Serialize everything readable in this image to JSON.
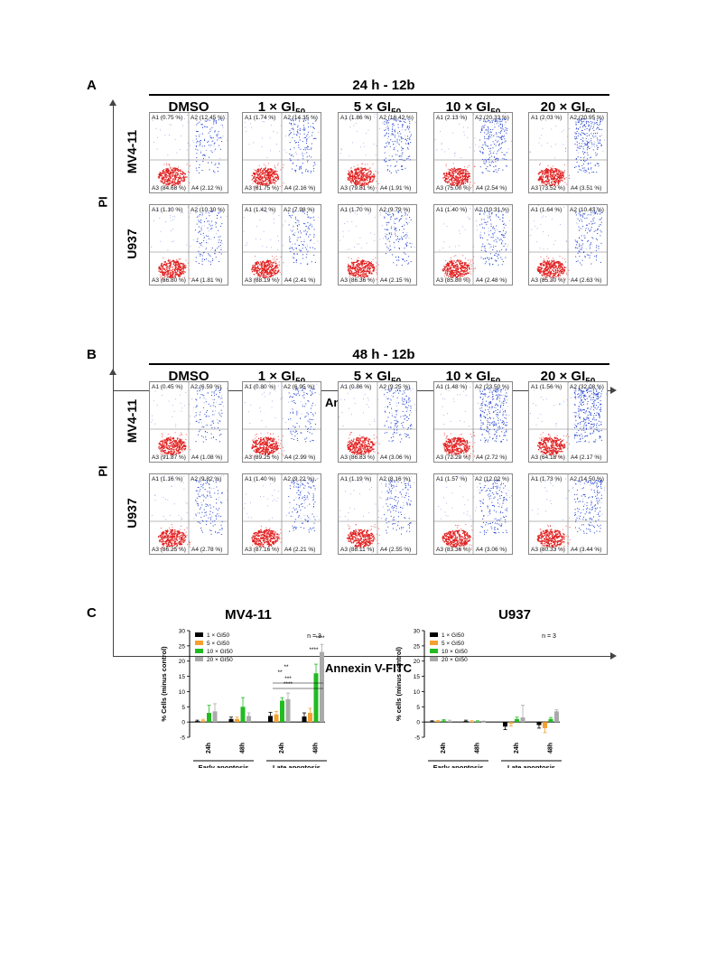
{
  "panels": {
    "A": {
      "letter": "A",
      "title": "24 h - 12b",
      "columns": [
        "DMSO",
        "1 × GI",
        "5 × GI",
        "10 × GI",
        "20 × GI"
      ],
      "col_subscript": "50",
      "rows": [
        "MV4-11",
        "U937"
      ],
      "y_label": "PI",
      "x_label": "Annexin V-FITC",
      "quadrants": [
        [
          [
            "A1 (0.75 %)",
            "A2 (12.45 %)",
            "A3 (84.68 %)",
            "A4 (2.12 %)"
          ],
          [
            "A1 (1.74 %)",
            "A2 (14.35 %)",
            "A3 (81.75 %)",
            "A4 (2.16 %)"
          ],
          [
            "A1 (1.86 %)",
            "A2 (16.42 %)",
            "A3 (79.81 %)",
            "A4 (1.91 %)"
          ],
          [
            "A1 (2.13 %)",
            "A2 (20.33 %)",
            "A3 (75.00 %)",
            "A4 (2.54 %)"
          ],
          [
            "A1 (2.03 %)",
            "A2 (20.95 %)",
            "A3 (73.52 %)",
            "A4 (3.51 %)"
          ]
        ],
        [
          [
            "A1 (1.10 %)",
            "A2 (10.30 %)",
            "A3 (86.80 %)",
            "A4 (1.81 %)"
          ],
          [
            "A1 (1.42 %)",
            "A2 (7.98 %)",
            "A3 (88.19 %)",
            "A4 (2.41 %)"
          ],
          [
            "A1 (1.70 %)",
            "A2 (9.79 %)",
            "A3 (86.36 %)",
            "A4 (2.15 %)"
          ],
          [
            "A1 (1.40 %)",
            "A2 (10.31 %)",
            "A3 (85.80 %)",
            "A4 (2.48 %)"
          ],
          [
            "A1 (1.64 %)",
            "A2 (10.43 %)",
            "A3 (85.30 %)",
            "A4 (2.63 %)"
          ]
        ]
      ],
      "density": [
        [
          0.2,
          0.3,
          0.4,
          0.55,
          0.6
        ],
        [
          0.2,
          0.2,
          0.25,
          0.3,
          0.3
        ]
      ]
    },
    "B": {
      "letter": "B",
      "title": "48 h - 12b",
      "columns": [
        "DMSO",
        "1 × GI",
        "5 × GI",
        "10 × GI",
        "20 × GI"
      ],
      "col_subscript": "50",
      "rows": [
        "MV4-11",
        "U937"
      ],
      "y_label": "PI",
      "x_label": "Annexin V-FITC",
      "quadrants": [
        [
          [
            "A1 (0.45 %)",
            "A2 (6.59 %)",
            "A3 (91.87 %)",
            "A4 (1.08 %)"
          ],
          [
            "A1 (0.80 %)",
            "A2 (6.95 %)",
            "A3 (89.25 %)",
            "A4 (2.99 %)"
          ],
          [
            "A1 (0.86 %)",
            "A2 (9.25 %)",
            "A3 (86.83 %)",
            "A4 (3.06 %)"
          ],
          [
            "A1 (1.48 %)",
            "A2 (23.50 %)",
            "A3 (72.29 %)",
            "A4 (2.72 %)"
          ],
          [
            "A1 (1.56 %)",
            "A2 (32.08 %)",
            "A3 (64.18 %)",
            "A4 (2.17 %)"
          ]
        ],
        [
          [
            "A1 (1.16 %)",
            "A2 (9.82 %)",
            "A3 (86.25 %)",
            "A4 (2.78 %)"
          ],
          [
            "A1 (1.40 %)",
            "A2 (9.22 %)",
            "A3 (87.16 %)",
            "A4 (2.21 %)"
          ],
          [
            "A1 (1.19 %)",
            "A2 (8.16 %)",
            "A3 (88.11 %)",
            "A4 (2.55 %)"
          ],
          [
            "A1 (1.57 %)",
            "A2 (12.02 %)",
            "A3 (83.36 %)",
            "A4 (3.06 %)"
          ],
          [
            "A1 (1.73 %)",
            "A2 (14.50 %)",
            "A3 (80.33 %)",
            "A4 (3.44 %)"
          ]
        ]
      ],
      "density": [
        [
          0.15,
          0.2,
          0.3,
          0.7,
          0.9
        ],
        [
          0.25,
          0.25,
          0.25,
          0.35,
          0.4
        ]
      ]
    },
    "C": {
      "letter": "C",
      "legend": [
        "1 × GI50",
        "5 × GI50",
        "10 × GI50",
        "20 × GI50"
      ],
      "colors": [
        "#000000",
        "#f5a030",
        "#22bb22",
        "#aaaaaa"
      ]
    }
  },
  "chart_data": [
    {
      "type": "bar",
      "title": "MV4-11",
      "ylabel": "% Cells (minus control)",
      "ylim": [
        -5,
        30
      ],
      "yticks": [
        -5,
        0,
        5,
        10,
        15,
        20,
        25,
        30
      ],
      "groups": [
        "Early apoptosis",
        "Late apoptosis"
      ],
      "categories": [
        "24h",
        "48h",
        "24h",
        "48h"
      ],
      "annotation": "n = 3",
      "series": [
        {
          "name": "1 × GI50",
          "values": [
            0.3,
            1.0,
            2.0,
            1.8
          ],
          "errors": [
            0.3,
            0.6,
            1.2,
            1.2
          ]
        },
        {
          "name": "5 × GI50",
          "values": [
            0.5,
            1.0,
            2.5,
            3.0
          ],
          "errors": [
            0.4,
            0.6,
            1.0,
            1.5
          ]
        },
        {
          "name": "10 × GI50",
          "values": [
            3.0,
            5.0,
            7.0,
            16.0
          ],
          "errors": [
            2.5,
            3.0,
            1.0,
            3.0
          ]
        },
        {
          "name": "20 × GI50",
          "values": [
            3.5,
            2.0,
            7.5,
            23.0
          ],
          "errors": [
            2.5,
            1.0,
            2.0,
            2.5
          ]
        }
      ],
      "significance": [
        "**",
        "**",
        "***",
        "****",
        "****",
        "****"
      ]
    },
    {
      "type": "bar",
      "title": "U937",
      "ylabel": "% cells (minus control)",
      "ylim": [
        -5,
        30
      ],
      "yticks": [
        -5,
        0,
        5,
        10,
        15,
        20,
        25,
        30
      ],
      "groups": [
        "Early apoptosis",
        "Late apoptosis"
      ],
      "categories": [
        "24h",
        "48h",
        "24h",
        "48h"
      ],
      "annotation": "n = 3",
      "series": [
        {
          "name": "1 × GI50",
          "values": [
            0.2,
            0.3,
            -1.5,
            -1.0
          ],
          "errors": [
            0.2,
            0.3,
            1.0,
            1.0
          ]
        },
        {
          "name": "5 × GI50",
          "values": [
            0.3,
            0.2,
            -0.5,
            -2.0
          ],
          "errors": [
            0.2,
            0.2,
            0.8,
            1.5
          ]
        },
        {
          "name": "10 × GI50",
          "values": [
            0.5,
            0.2,
            1.0,
            1.0
          ],
          "errors": [
            0.3,
            0.2,
            0.6,
            0.5
          ]
        },
        {
          "name": "20 × GI50",
          "values": [
            0.3,
            0.1,
            1.5,
            3.5
          ],
          "errors": [
            0.3,
            0.2,
            4.0,
            0.5
          ]
        }
      ]
    }
  ]
}
